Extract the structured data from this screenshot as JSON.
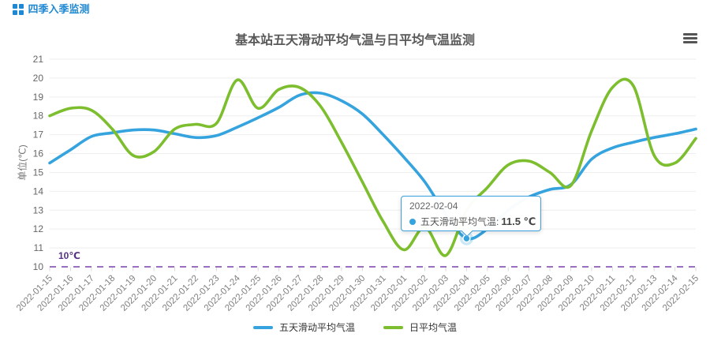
{
  "header": {
    "title": "四季入季监测"
  },
  "toolbox": {
    "icon": "hamburger-menu"
  },
  "chart": {
    "title": "基本站五天滑动平均气温与日平均气温监测",
    "y_axis_name": "单位(℃)",
    "markline_label": "10℃",
    "tooltip": {
      "date": "2022-02-04",
      "series_label": "五天滑动平均气温: ",
      "value": "11.5 ℃"
    }
  },
  "chart_data": {
    "type": "line",
    "title": "基本站五天滑动平均气温与日平均气温监测",
    "ylabel": "单位(℃)",
    "ylim": [
      10,
      21
    ],
    "y_tick_step": 1,
    "grid": true,
    "smooth": true,
    "legend_position": "bottom",
    "x": [
      "2022-01-15",
      "2022-01-16",
      "2022-01-17",
      "2022-01-18",
      "2022-01-19",
      "2022-01-20",
      "2022-01-21",
      "2022-01-22",
      "2022-01-23",
      "2022-01-24",
      "2022-01-25",
      "2022-01-26",
      "2022-01-27",
      "2022-01-28",
      "2022-01-29",
      "2022-01-30",
      "2022-01-31",
      "2022-02-01",
      "2022-02-02",
      "2022-02-03",
      "2022-02-04",
      "2022-02-05",
      "2022-02-06",
      "2022-02-07",
      "2022-02-08",
      "2022-02-09",
      "2022-02-10",
      "2022-02-11",
      "2022-02-12",
      "2022-02-13",
      "2022-02-14",
      "2022-02-15"
    ],
    "series": [
      {
        "name": "五天滑动平均气温",
        "color": "#35a3de",
        "values": [
          15.5,
          16.2,
          16.9,
          17.1,
          17.25,
          17.25,
          17.05,
          16.85,
          16.95,
          17.4,
          17.9,
          18.45,
          19.1,
          19.2,
          18.8,
          18.1,
          17.0,
          15.8,
          14.5,
          12.8,
          11.5,
          12.0,
          13.0,
          13.7,
          14.1,
          14.35,
          15.7,
          16.3,
          16.6,
          16.85,
          17.05,
          17.3
        ]
      },
      {
        "name": "日平均气温",
        "color": "#7cbe2d",
        "values": [
          18.0,
          18.4,
          18.3,
          17.3,
          15.9,
          16.1,
          17.3,
          17.55,
          17.6,
          19.9,
          18.4,
          19.4,
          19.5,
          18.5,
          16.6,
          14.5,
          12.4,
          10.9,
          12.1,
          10.6,
          13.0,
          14.2,
          15.4,
          15.6,
          15.0,
          14.3,
          17.2,
          19.5,
          19.6,
          15.9,
          15.5,
          16.8
        ]
      }
    ],
    "markline": {
      "y": 10,
      "label": "10℃",
      "color": "#9a6fc0",
      "style": "dashed"
    },
    "highlight": {
      "series": "五天滑动平均气温",
      "x": "2022-02-04",
      "y": 11.5
    }
  },
  "colors": {
    "header_blue": "#1f88d2",
    "series_blue": "#35a3de",
    "series_green": "#7cbe2d",
    "markline_purple": "#9a6fc0",
    "markline_label_purple": "#553285",
    "title_gray": "#595959",
    "axis_text_gray": "#808080",
    "grid_line": "#eeeeee",
    "tooltip_border": "#3aa0de",
    "toolbox_icon": "#555555"
  }
}
